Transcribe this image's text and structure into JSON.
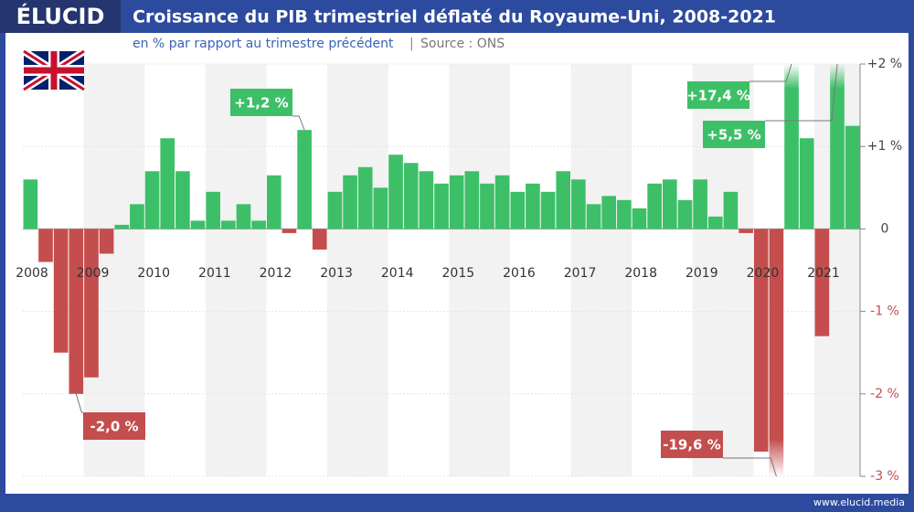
{
  "brand": "ÉLUCID",
  "footer": "www.elucid.media",
  "chart_data": {
    "type": "bar",
    "title": "Croissance du PIB trimestriel déflaté du Royaume-Uni, 2008-2021",
    "subtitle": "en % par rapport au trimestre précédent",
    "source": "Source : ONS",
    "categories": [
      "2008",
      null,
      null,
      null,
      "2009",
      null,
      null,
      null,
      "2010",
      null,
      null,
      null,
      "2011",
      null,
      null,
      null,
      "2012",
      null,
      null,
      null,
      "2013",
      null,
      null,
      null,
      "2014",
      null,
      null,
      null,
      "2015",
      null,
      null,
      null,
      "2016",
      null,
      null,
      null,
      "2017",
      null,
      null,
      null,
      "2018",
      null,
      null,
      null,
      "2019",
      null,
      null,
      null,
      "2020",
      null,
      null,
      null,
      "2021",
      null,
      null
    ],
    "values": [
      0.6,
      -0.4,
      -1.5,
      -2.0,
      -1.8,
      -0.3,
      0.05,
      0.3,
      0.7,
      1.1,
      0.7,
      0.1,
      0.45,
      0.1,
      0.3,
      0.1,
      0.65,
      -0.05,
      1.2,
      -0.25,
      0.45,
      0.65,
      0.75,
      0.5,
      0.9,
      0.8,
      0.7,
      0.55,
      0.65,
      0.7,
      0.55,
      0.65,
      0.45,
      0.55,
      0.45,
      0.7,
      0.6,
      0.3,
      0.4,
      0.35,
      0.25,
      0.55,
      0.6,
      0.35,
      0.6,
      0.15,
      0.45,
      -0.05,
      -2.7,
      -19.6,
      17.4,
      1.1,
      -1.3,
      5.5,
      1.25
    ],
    "value_labels": [
      null,
      null,
      null,
      "-2,0 %",
      null,
      null,
      null,
      null,
      null,
      null,
      null,
      null,
      null,
      null,
      null,
      null,
      null,
      null,
      "+1,2 %",
      null,
      null,
      null,
      null,
      null,
      null,
      null,
      null,
      null,
      null,
      null,
      null,
      null,
      null,
      null,
      null,
      null,
      null,
      null,
      null,
      null,
      null,
      null,
      null,
      null,
      null,
      null,
      null,
      null,
      null,
      "-19,6 %",
      "+17,4 %",
      null,
      null,
      "+5,5 %",
      null
    ],
    "positive_color": "#3dbf68",
    "negative_color": "#c44d4d",
    "ylim": [
      -3,
      2
    ],
    "yticks": [
      {
        "value": 2,
        "label": "+2 %"
      },
      {
        "value": 1,
        "label": "+1 %"
      },
      0,
      {
        "value": -1,
        "label": "-1 %"
      },
      {
        "value": -2,
        "label": "-2 %"
      },
      {
        "value": -3,
        "label": "-3 %"
      }
    ]
  }
}
